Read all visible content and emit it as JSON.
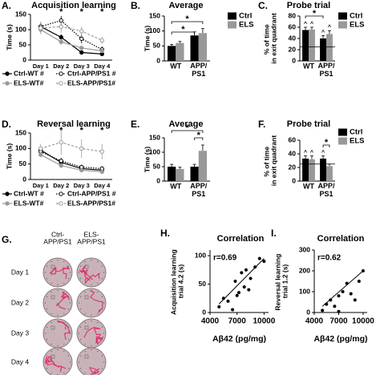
{
  "chart_data": [
    {
      "label": "A.",
      "type": "line",
      "title": "Acquisition learning",
      "y_label": "Time (s)",
      "categories": [
        "Day 1",
        "Day 2",
        "Day 3",
        "Day 4"
      ],
      "ylim": [
        0,
        150
      ],
      "yticks": [
        0,
        50,
        100,
        150
      ],
      "significance": [
        null,
        "*",
        "*",
        "*"
      ],
      "series": [
        {
          "name": "Ctrl-WT #",
          "color": "#000000",
          "line": "solid",
          "marker": "filled",
          "values": [
            110,
            75,
            25,
            20
          ],
          "errors": [
            10,
            10,
            5,
            5
          ]
        },
        {
          "name": "Ctrl-APP/PS1 #",
          "color": "#000000",
          "line": "dotted",
          "marker": "open",
          "values": [
            110,
            130,
            70,
            35
          ],
          "errors": [
            15,
            15,
            15,
            10
          ]
        },
        {
          "name": "ELS-WT#",
          "color": "#999999",
          "line": "solid",
          "marker": "filled",
          "values": [
            100,
            60,
            40,
            30
          ],
          "errors": [
            10,
            10,
            8,
            5
          ]
        },
        {
          "name": "ELS-APP/PS1#",
          "color": "#999999",
          "line": "dashed",
          "marker": "open",
          "values": [
            105,
            110,
            95,
            65
          ],
          "errors": [
            20,
            20,
            15,
            12
          ]
        }
      ]
    },
    {
      "label": "B.",
      "type": "bar",
      "title": "Average",
      "y_label": "Time (s)",
      "legend": true,
      "categories": [
        "WT",
        "APP/PS1"
      ],
      "ylim": [
        0,
        150
      ],
      "yticks": [
        0,
        50,
        100,
        150
      ],
      "annotations": [
        "*",
        "*"
      ],
      "series": [
        {
          "name": "Ctrl",
          "color": "#000000",
          "values": [
            50,
            85
          ],
          "errors": [
            5,
            12
          ]
        },
        {
          "name": "ELS",
          "color": "#999999",
          "values": [
            60,
            93
          ],
          "errors": [
            5,
            15
          ]
        }
      ]
    },
    {
      "label": "C.",
      "type": "bar",
      "title": "Probe trial",
      "y_label": "% of time in exit quadrant",
      "legend": true,
      "categories": [
        "WT",
        "APP/PS1"
      ],
      "ylim": [
        0,
        80
      ],
      "yticks": [
        0,
        20,
        40,
        60,
        80
      ],
      "reference_line": 25,
      "annotations": [
        "*"
      ],
      "series": [
        {
          "name": "Ctrl",
          "color": "#000000",
          "values": [
            55,
            40
          ],
          "errors": [
            5,
            5
          ],
          "symbols": [
            "^",
            "^"
          ]
        },
        {
          "name": "ELS",
          "color": "#999999",
          "values": [
            56,
            48
          ],
          "errors": [
            4,
            6
          ],
          "symbols": [
            "^",
            "^"
          ]
        }
      ]
    },
    {
      "label": "D.",
      "type": "line",
      "title": "Reversal learning",
      "y_label": "Time (s)",
      "categories": [
        "Day 1",
        "Day 2",
        "Day 3",
        "Day 4"
      ],
      "ylim": [
        0,
        150
      ],
      "yticks": [
        0,
        50,
        100,
        150
      ],
      "significance": [
        null,
        "*",
        "*",
        "*"
      ],
      "series": [
        {
          "name": "Ctrl-WT #",
          "color": "#000000",
          "line": "solid",
          "marker": "filled",
          "values": [
            95,
            55,
            35,
            30
          ],
          "errors": [
            10,
            8,
            5,
            5
          ]
        },
        {
          "name": "Ctrl-APP/PS1 #",
          "color": "#000000",
          "line": "dotted",
          "marker": "open",
          "values": [
            90,
            60,
            40,
            35
          ],
          "errors": [
            10,
            10,
            8,
            8
          ]
        },
        {
          "name": "ELS-WT#",
          "color": "#999999",
          "line": "solid",
          "marker": "filled",
          "values": [
            80,
            45,
            30,
            25
          ],
          "errors": [
            8,
            8,
            5,
            5
          ]
        },
        {
          "name": "ELS-APP/PS1#",
          "color": "#999999",
          "line": "dashed",
          "marker": "open",
          "values": [
            100,
            120,
            100,
            90
          ],
          "errors": [
            15,
            40,
            30,
            25
          ]
        }
      ]
    },
    {
      "label": "E.",
      "type": "bar",
      "title": "Average",
      "y_label": "Time (s)",
      "legend": false,
      "categories": [
        "WT",
        "APP/PS1"
      ],
      "ylim": [
        0,
        150
      ],
      "yticks": [
        0,
        50,
        100,
        150
      ],
      "annotations": [
        "*",
        "*"
      ],
      "series": [
        {
          "name": "Ctrl",
          "color": "#000000",
          "values": [
            50,
            50
          ],
          "errors": [
            8,
            8
          ]
        },
        {
          "name": "ELS",
          "color": "#999999",
          "values": [
            42,
            105
          ],
          "errors": [
            6,
            20
          ]
        }
      ]
    },
    {
      "label": "F.",
      "type": "bar",
      "title": "Probe trial",
      "y_label": "% of time in exit quadrant",
      "legend": true,
      "categories": [
        "WT",
        "APP/PS1"
      ],
      "ylim": [
        0,
        60
      ],
      "yticks": [
        0,
        20,
        40,
        60
      ],
      "reference_line": 25,
      "annotations": [
        "*"
      ],
      "series": [
        {
          "name": "Ctrl",
          "color": "#000000",
          "values": [
            33,
            33
          ],
          "errors": [
            4,
            4
          ],
          "symbols": [
            "^",
            "^"
          ]
        },
        {
          "name": "ELS",
          "color": "#999999",
          "values": [
            32,
            22
          ],
          "errors": [
            5,
            3
          ],
          "symbols": [
            "^",
            null
          ]
        }
      ]
    },
    {
      "label": "H.",
      "type": "scatter",
      "title": "Correlation",
      "annotation": "r=0.69",
      "x_label": "Aβ42 (pg/mg)",
      "y_label": "Acquisition learning trial 4.2 (s)",
      "color": "#000000",
      "xlim": [
        4000,
        10500
      ],
      "ylim": [
        0,
        110
      ],
      "xticks": [
        4000,
        7000,
        10000
      ],
      "yticks": [
        0,
        50,
        100
      ],
      "x": [
        5000,
        5500,
        6000,
        6500,
        6800,
        7000,
        7200,
        7500,
        7800,
        8000,
        8300,
        8500,
        9000,
        9500,
        10000
      ],
      "values": [
        10,
        25,
        20,
        5,
        55,
        30,
        35,
        70,
        45,
        75,
        40,
        60,
        80,
        95,
        90
      ],
      "trend_x": [
        5000,
        10000
      ],
      "trend_y": [
        15,
        95
      ]
    },
    {
      "label": "I.",
      "type": "scatter",
      "title": "Correlation",
      "annotation": "r=0.62",
      "x_label": "Aβ42 (pg/mg)",
      "y_label": "Reversal learning trial 1.2 (s)",
      "color": "#000000",
      "xlim": [
        4000,
        10500
      ],
      "ylim": [
        0,
        300
      ],
      "xticks": [
        4000,
        7000,
        10000
      ],
      "yticks": [
        0,
        100,
        200,
        300
      ],
      "x": [
        5000,
        5500,
        6000,
        6500,
        7000,
        7000,
        7500,
        8000,
        8500,
        9000,
        9500,
        10000
      ],
      "values": [
        10,
        40,
        60,
        30,
        80,
        5,
        100,
        140,
        90,
        60,
        150,
        200
      ],
      "trend_x": [
        5000,
        10000
      ],
      "trend_y": [
        30,
        200
      ]
    }
  ],
  "swim_paths": {
    "label": "G.",
    "columns": [
      "Ctrl-APP/PS1",
      "ELS-APP/PS1"
    ],
    "rows": [
      "Day 1",
      "Day 2",
      "Day 3",
      "Day 4"
    ]
  }
}
